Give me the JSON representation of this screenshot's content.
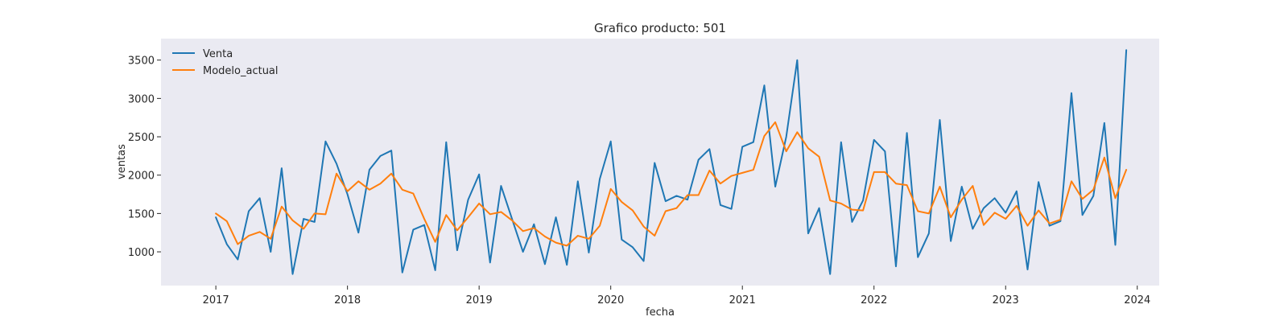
{
  "chart_data": {
    "type": "line",
    "title": "Grafico producto: 501",
    "xlabel": "fecha",
    "ylabel": "ventas",
    "xlim": [
      "2016-08-01",
      "2024-03-01"
    ],
    "ylim": [
      560,
      3780
    ],
    "x_ticks": [
      "2017",
      "2018",
      "2019",
      "2020",
      "2021",
      "2022",
      "2023",
      "2024"
    ],
    "y_ticks": [
      1000,
      1500,
      2000,
      2500,
      3000,
      3500
    ],
    "grid": false,
    "legend_position": "top-left",
    "start_date": "2017-01",
    "frequency": "monthly",
    "series": [
      {
        "name": "Venta",
        "color": "#1f77b4",
        "values": [
          1450,
          1100,
          900,
          1530,
          1700,
          1000,
          2090,
          710,
          1430,
          1390,
          2440,
          2150,
          1750,
          1250,
          2070,
          2250,
          2320,
          730,
          1290,
          1350,
          760,
          2430,
          1020,
          1680,
          2010,
          860,
          1860,
          1430,
          1000,
          1360,
          840,
          1450,
          830,
          1920,
          990,
          1950,
          2440,
          1160,
          1060,
          880,
          2160,
          1660,
          1730,
          1680,
          2200,
          2340,
          1610,
          1560,
          2370,
          2430,
          3170,
          1850,
          2500,
          3500,
          1240,
          1570,
          710,
          2430,
          1390,
          1670,
          2460,
          2310,
          810,
          2550,
          930,
          1240,
          2720,
          1140,
          1850,
          1300,
          1570,
          1700,
          1510,
          1790,
          770,
          1910,
          1340,
          1400,
          3070,
          1480,
          1730,
          2680,
          1090,
          3630
        ]
      },
      {
        "name": "Modelo_actual",
        "color": "#ff7f0e",
        "values": [
          1500,
          1400,
          1100,
          1210,
          1260,
          1170,
          1590,
          1410,
          1300,
          1500,
          1490,
          2020,
          1790,
          1920,
          1810,
          1890,
          2020,
          1810,
          1760,
          1430,
          1130,
          1480,
          1280,
          1450,
          1630,
          1490,
          1520,
          1410,
          1270,
          1310,
          1200,
          1120,
          1080,
          1210,
          1170,
          1340,
          1820,
          1650,
          1540,
          1330,
          1210,
          1530,
          1570,
          1740,
          1740,
          2060,
          1890,
          1990,
          2030,
          2070,
          2510,
          2690,
          2310,
          2560,
          2350,
          2240,
          1670,
          1630,
          1550,
          1540,
          2040,
          2040,
          1890,
          1870,
          1530,
          1500,
          1850,
          1450,
          1680,
          1860,
          1350,
          1510,
          1430,
          1600,
          1340,
          1540,
          1370,
          1420,
          1920,
          1690,
          1810,
          2230,
          1700,
          2070
        ]
      }
    ]
  }
}
